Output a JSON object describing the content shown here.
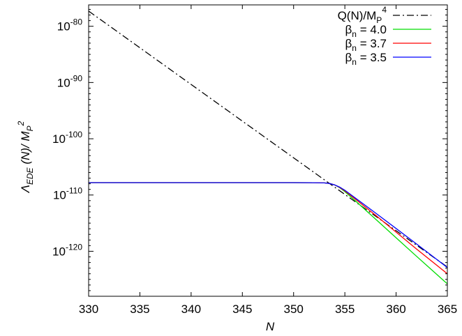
{
  "chart_data": {
    "type": "line",
    "xlabel": "N",
    "ylabel": {
      "main": "Λ",
      "sub": "EDE",
      "mid": " (N)/ M",
      "psub": "P",
      "sup": "2"
    },
    "x_range": [
      330,
      365
    ],
    "y_range_log10": [
      -128,
      -76.2
    ],
    "y_scale": "log",
    "grid": false,
    "legend_position": "top-right",
    "x_ticks": [
      {
        "value": 330,
        "label": "330"
      },
      {
        "value": 335,
        "label": "335"
      },
      {
        "value": 340,
        "label": "340"
      },
      {
        "value": 345,
        "label": "345"
      },
      {
        "value": 350,
        "label": "350"
      },
      {
        "value": 355,
        "label": "355"
      },
      {
        "value": 360,
        "label": "360"
      },
      {
        "value": 365,
        "label": "365"
      }
    ],
    "y_ticks": [
      {
        "exp": -80,
        "base": "10",
        "sup": "-80"
      },
      {
        "exp": -90,
        "base": "10",
        "sup": "-90"
      },
      {
        "exp": -100,
        "base": "10",
        "sup": "-100"
      },
      {
        "exp": -110,
        "base": "10",
        "sup": "-110"
      },
      {
        "exp": -120,
        "base": "10",
        "sup": "-120"
      }
    ],
    "series": [
      {
        "name": "Q(N)/M_P^4",
        "legend": {
          "main": "Q(N)/M",
          "sub": "P",
          "sup": "4"
        },
        "color": "#000000",
        "dash": "dashdot",
        "x": [
          330,
          354,
          365
        ],
        "y_log10": [
          -77.3,
          -108.6,
          -122.8
        ]
      },
      {
        "name": "βn = 4.0",
        "legend": {
          "main": "β",
          "sub": "n",
          "rest": " = 4.0"
        },
        "color": "#00dd00",
        "dash": "solid",
        "x": [
          330,
          350,
          352,
          353,
          353.5,
          354,
          354.5,
          355,
          356,
          358,
          360,
          362,
          365
        ],
        "y_log10": [
          -107.8,
          -107.8,
          -107.81,
          -107.85,
          -107.95,
          -108.2,
          -108.7,
          -109.4,
          -111.0,
          -114.3,
          -117.6,
          -120.9,
          -125.8
        ]
      },
      {
        "name": "βn = 3.7",
        "legend": {
          "main": "β",
          "sub": "n",
          "rest": " = 3.7"
        },
        "color": "#ff0000",
        "dash": "solid",
        "x": [
          330,
          350,
          352,
          353,
          353.5,
          354,
          354.5,
          355,
          356,
          358,
          360,
          362,
          365
        ],
        "y_log10": [
          -107.8,
          -107.8,
          -107.81,
          -107.85,
          -107.95,
          -108.2,
          -108.65,
          -109.25,
          -110.7,
          -113.6,
          -116.6,
          -119.6,
          -124.0
        ]
      },
      {
        "name": "βn = 3.5",
        "legend": {
          "main": "β",
          "sub": "n",
          "rest": " = 3.5"
        },
        "color": "#0000ff",
        "dash": "solid",
        "x": [
          330,
          350,
          352,
          353,
          353.5,
          354,
          354.5,
          355,
          356,
          358,
          360,
          362,
          365
        ],
        "y_log10": [
          -107.8,
          -107.8,
          -107.81,
          -107.85,
          -107.95,
          -108.2,
          -108.6,
          -109.15,
          -110.5,
          -113.2,
          -115.95,
          -118.7,
          -122.9
        ]
      }
    ]
  }
}
